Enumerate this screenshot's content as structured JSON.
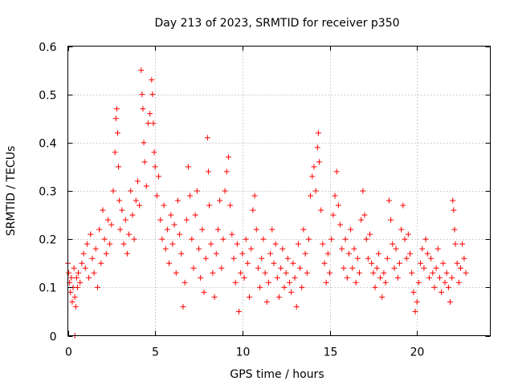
{
  "chart_data": {
    "type": "scatter",
    "title": "Day 213 of 2023, SRMTID for receiver p350",
    "xlabel": "GPS time / hours",
    "ylabel": "SRMTID / TECUs",
    "xlim": [
      0,
      24.2
    ],
    "ylim": [
      0,
      0.6
    ],
    "x_ticks": [
      0,
      5,
      10,
      15,
      20
    ],
    "x_tick_labels": [
      "0",
      "5",
      "10",
      "15",
      "20"
    ],
    "y_ticks": [
      0,
      0.1,
      0.2,
      0.3,
      0.4,
      0.5,
      0.6
    ],
    "y_tick_labels": [
      "0",
      "0.1",
      "0.2",
      "0.3",
      "0.4",
      "0.5",
      "0.6"
    ],
    "grid": true,
    "marker": "+",
    "series_color": "#ff0000",
    "series": [
      {
        "name": "p350",
        "points": [
          [
            0.0,
            0.15
          ],
          [
            0.05,
            0.13
          ],
          [
            0.1,
            0.11
          ],
          [
            0.15,
            0.09
          ],
          [
            0.2,
            0.12
          ],
          [
            0.25,
            0.07
          ],
          [
            0.3,
            0.1
          ],
          [
            0.35,
            0.14
          ],
          [
            0.4,
            0.08
          ],
          [
            0.45,
            0.06
          ],
          [
            0.5,
            0.12
          ],
          [
            0.55,
            0.1
          ],
          [
            0.4,
            0.0
          ],
          [
            0.6,
            0.13
          ],
          [
            0.7,
            0.11
          ],
          [
            0.8,
            0.15
          ],
          [
            0.9,
            0.17
          ],
          [
            1.0,
            0.14
          ],
          [
            1.1,
            0.19
          ],
          [
            1.2,
            0.12
          ],
          [
            1.3,
            0.21
          ],
          [
            1.4,
            0.16
          ],
          [
            1.5,
            0.13
          ],
          [
            1.6,
            0.18
          ],
          [
            1.7,
            0.1
          ],
          [
            1.8,
            0.22
          ],
          [
            1.9,
            0.15
          ],
          [
            2.0,
            0.26
          ],
          [
            2.1,
            0.2
          ],
          [
            2.2,
            0.17
          ],
          [
            2.3,
            0.24
          ],
          [
            2.4,
            0.19
          ],
          [
            2.5,
            0.23
          ],
          [
            2.6,
            0.3
          ],
          [
            2.7,
            0.38
          ],
          [
            2.75,
            0.45
          ],
          [
            2.8,
            0.47
          ],
          [
            2.85,
            0.42
          ],
          [
            2.9,
            0.35
          ],
          [
            2.95,
            0.28
          ],
          [
            3.0,
            0.22
          ],
          [
            3.1,
            0.26
          ],
          [
            3.2,
            0.19
          ],
          [
            3.3,
            0.24
          ],
          [
            3.4,
            0.17
          ],
          [
            3.5,
            0.21
          ],
          [
            3.6,
            0.3
          ],
          [
            3.7,
            0.25
          ],
          [
            3.8,
            0.2
          ],
          [
            3.9,
            0.28
          ],
          [
            4.0,
            0.32
          ],
          [
            4.1,
            0.27
          ],
          [
            4.2,
            0.55
          ],
          [
            4.25,
            0.5
          ],
          [
            4.3,
            0.47
          ],
          [
            4.35,
            0.4
          ],
          [
            4.4,
            0.36
          ],
          [
            4.5,
            0.31
          ],
          [
            4.6,
            0.44
          ],
          [
            4.7,
            0.46
          ],
          [
            4.8,
            0.53
          ],
          [
            4.85,
            0.5
          ],
          [
            4.9,
            0.44
          ],
          [
            4.95,
            0.38
          ],
          [
            5.0,
            0.35
          ],
          [
            5.1,
            0.29
          ],
          [
            5.2,
            0.33
          ],
          [
            5.3,
            0.24
          ],
          [
            5.4,
            0.2
          ],
          [
            5.5,
            0.27
          ],
          [
            5.6,
            0.18
          ],
          [
            5.7,
            0.22
          ],
          [
            5.8,
            0.15
          ],
          [
            5.9,
            0.25
          ],
          [
            6.0,
            0.19
          ],
          [
            6.1,
            0.23
          ],
          [
            6.2,
            0.13
          ],
          [
            6.3,
            0.28
          ],
          [
            6.4,
            0.21
          ],
          [
            6.5,
            0.17
          ],
          [
            6.6,
            0.06
          ],
          [
            6.7,
            0.11
          ],
          [
            6.8,
            0.24
          ],
          [
            6.9,
            0.35
          ],
          [
            7.0,
            0.29
          ],
          [
            7.1,
            0.2
          ],
          [
            7.2,
            0.14
          ],
          [
            7.3,
            0.25
          ],
          [
            7.4,
            0.3
          ],
          [
            7.5,
            0.18
          ],
          [
            7.6,
            0.12
          ],
          [
            7.7,
            0.22
          ],
          [
            7.8,
            0.09
          ],
          [
            7.9,
            0.16
          ],
          [
            8.0,
            0.41
          ],
          [
            8.05,
            0.34
          ],
          [
            8.1,
            0.27
          ],
          [
            8.2,
            0.19
          ],
          [
            8.3,
            0.13
          ],
          [
            8.4,
            0.08
          ],
          [
            8.5,
            0.17
          ],
          [
            8.6,
            0.22
          ],
          [
            8.7,
            0.28
          ],
          [
            8.8,
            0.14
          ],
          [
            8.9,
            0.2
          ],
          [
            9.0,
            0.3
          ],
          [
            9.1,
            0.34
          ],
          [
            9.2,
            0.37
          ],
          [
            9.3,
            0.27
          ],
          [
            9.4,
            0.21
          ],
          [
            9.5,
            0.16
          ],
          [
            9.6,
            0.11
          ],
          [
            9.7,
            0.19
          ],
          [
            9.8,
            0.05
          ],
          [
            9.9,
            0.13
          ],
          [
            10.0,
            0.17
          ],
          [
            10.1,
            0.12
          ],
          [
            10.2,
            0.2
          ],
          [
            10.3,
            0.15
          ],
          [
            10.4,
            0.08
          ],
          [
            10.5,
            0.18
          ],
          [
            10.6,
            0.26
          ],
          [
            10.7,
            0.29
          ],
          [
            10.8,
            0.22
          ],
          [
            10.9,
            0.14
          ],
          [
            11.0,
            0.1
          ],
          [
            11.1,
            0.16
          ],
          [
            11.2,
            0.2
          ],
          [
            11.3,
            0.13
          ],
          [
            11.4,
            0.07
          ],
          [
            11.5,
            0.11
          ],
          [
            11.6,
            0.17
          ],
          [
            11.7,
            0.22
          ],
          [
            11.8,
            0.15
          ],
          [
            11.9,
            0.19
          ],
          [
            12.0,
            0.12
          ],
          [
            12.1,
            0.08
          ],
          [
            12.2,
            0.14
          ],
          [
            12.3,
            0.18
          ],
          [
            12.4,
            0.1
          ],
          [
            12.5,
            0.13
          ],
          [
            12.6,
            0.16
          ],
          [
            12.7,
            0.11
          ],
          [
            12.8,
            0.09
          ],
          [
            12.9,
            0.15
          ],
          [
            13.0,
            0.12
          ],
          [
            13.1,
            0.06
          ],
          [
            13.2,
            0.19
          ],
          [
            13.3,
            0.14
          ],
          [
            13.4,
            0.1
          ],
          [
            13.5,
            0.22
          ],
          [
            13.6,
            0.17
          ],
          [
            13.7,
            0.13
          ],
          [
            13.8,
            0.2
          ],
          [
            13.9,
            0.29
          ],
          [
            14.0,
            0.33
          ],
          [
            14.1,
            0.35
          ],
          [
            14.2,
            0.3
          ],
          [
            14.3,
            0.39
          ],
          [
            14.35,
            0.42
          ],
          [
            14.4,
            0.36
          ],
          [
            14.5,
            0.26
          ],
          [
            14.6,
            0.19
          ],
          [
            14.7,
            0.15
          ],
          [
            14.8,
            0.11
          ],
          [
            14.9,
            0.17
          ],
          [
            15.0,
            0.13
          ],
          [
            15.1,
            0.2
          ],
          [
            15.2,
            0.25
          ],
          [
            15.3,
            0.29
          ],
          [
            15.4,
            0.34
          ],
          [
            15.5,
            0.27
          ],
          [
            15.6,
            0.23
          ],
          [
            15.7,
            0.18
          ],
          [
            15.8,
            0.14
          ],
          [
            15.9,
            0.2
          ],
          [
            16.0,
            0.12
          ],
          [
            16.1,
            0.17
          ],
          [
            16.2,
            0.22
          ],
          [
            16.3,
            0.14
          ],
          [
            16.4,
            0.18
          ],
          [
            16.5,
            0.11
          ],
          [
            16.6,
            0.16
          ],
          [
            16.7,
            0.13
          ],
          [
            16.8,
            0.24
          ],
          [
            16.9,
            0.3
          ],
          [
            17.0,
            0.25
          ],
          [
            17.1,
            0.2
          ],
          [
            17.2,
            0.16
          ],
          [
            17.3,
            0.21
          ],
          [
            17.4,
            0.15
          ],
          [
            17.5,
            0.13
          ],
          [
            17.6,
            0.1
          ],
          [
            17.7,
            0.14
          ],
          [
            17.8,
            0.17
          ],
          [
            17.9,
            0.12
          ],
          [
            18.0,
            0.08
          ],
          [
            18.1,
            0.13
          ],
          [
            18.2,
            0.11
          ],
          [
            18.3,
            0.16
          ],
          [
            18.4,
            0.28
          ],
          [
            18.5,
            0.24
          ],
          [
            18.6,
            0.19
          ],
          [
            18.7,
            0.14
          ],
          [
            18.8,
            0.18
          ],
          [
            18.9,
            0.12
          ],
          [
            19.0,
            0.15
          ],
          [
            19.1,
            0.22
          ],
          [
            19.2,
            0.27
          ],
          [
            19.3,
            0.2
          ],
          [
            19.4,
            0.16
          ],
          [
            19.5,
            0.21
          ],
          [
            19.6,
            0.17
          ],
          [
            19.7,
            0.13
          ],
          [
            19.8,
            0.09
          ],
          [
            19.9,
            0.05
          ],
          [
            20.0,
            0.07
          ],
          [
            20.1,
            0.11
          ],
          [
            20.2,
            0.15
          ],
          [
            20.3,
            0.18
          ],
          [
            20.4,
            0.14
          ],
          [
            20.5,
            0.2
          ],
          [
            20.6,
            0.17
          ],
          [
            20.7,
            0.12
          ],
          [
            20.8,
            0.16
          ],
          [
            20.9,
            0.13
          ],
          [
            21.0,
            0.1
          ],
          [
            21.1,
            0.14
          ],
          [
            21.2,
            0.18
          ],
          [
            21.3,
            0.12
          ],
          [
            21.4,
            0.09
          ],
          [
            21.5,
            0.15
          ],
          [
            21.6,
            0.11
          ],
          [
            21.7,
            0.13
          ],
          [
            21.8,
            0.1
          ],
          [
            21.9,
            0.07
          ],
          [
            22.0,
            0.12
          ],
          [
            22.05,
            0.28
          ],
          [
            22.1,
            0.26
          ],
          [
            22.15,
            0.22
          ],
          [
            22.2,
            0.19
          ],
          [
            22.3,
            0.15
          ],
          [
            22.4,
            0.11
          ],
          [
            22.5,
            0.14
          ],
          [
            22.6,
            0.19
          ],
          [
            22.7,
            0.16
          ],
          [
            22.8,
            0.13
          ]
        ]
      }
    ]
  }
}
